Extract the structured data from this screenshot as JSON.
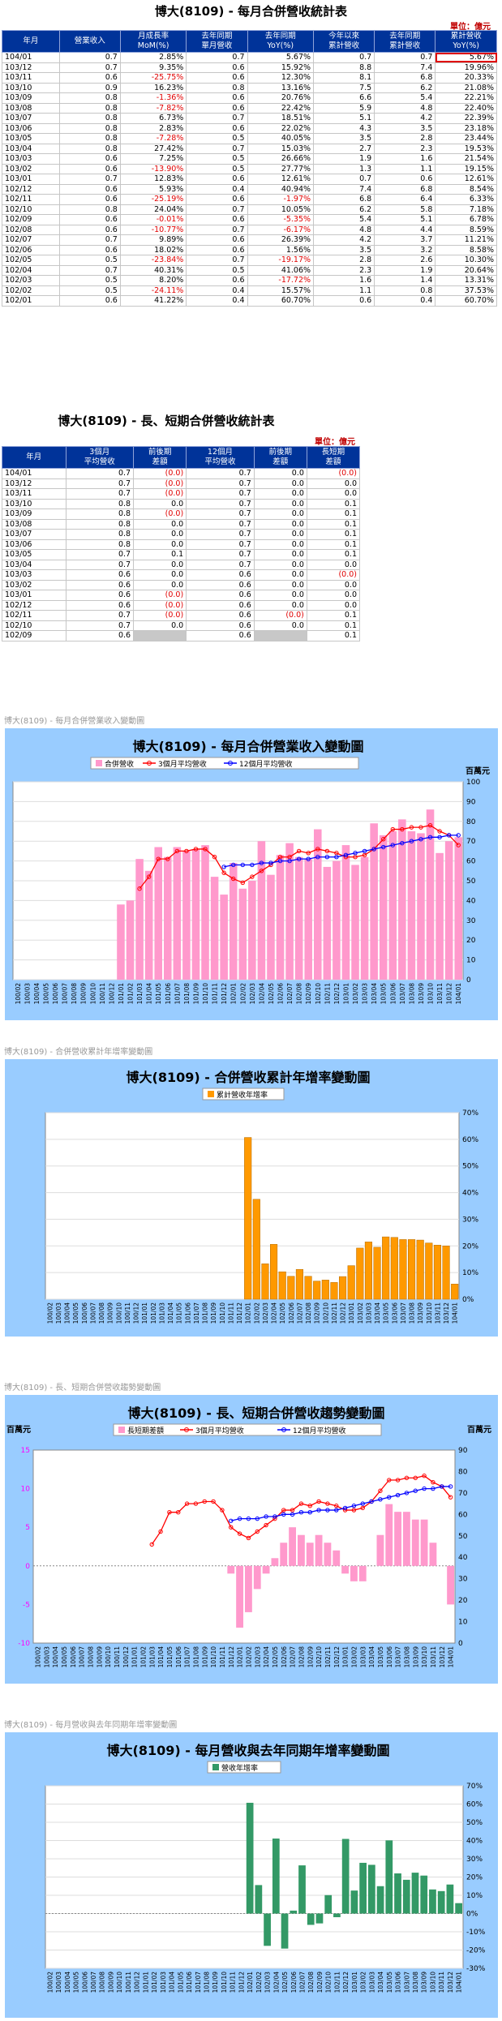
{
  "table1": {
    "title": "博大(8109)  - 每月合併營收統計表",
    "unit": "單位：億元",
    "headers": [
      "年月",
      "營業收入",
      "月成長率\nMoM(%)",
      "去年同期\n單月營收",
      "去年同期\nYoY(%)",
      "今年以來\n累計營收",
      "去年同期\n累計營收",
      "累計營收\nYoY(%)"
    ],
    "rows": [
      [
        "104/01",
        "0.7",
        "2.85%",
        "0.7",
        "5.67%",
        "0.7",
        "0.7",
        "5.67%"
      ],
      [
        "103/12",
        "0.7",
        "9.35%",
        "0.6",
        "15.92%",
        "8.8",
        "7.4",
        "19.96%"
      ],
      [
        "103/11",
        "0.6",
        "-25.75%",
        "0.6",
        "12.30%",
        "8.1",
        "6.8",
        "20.33%"
      ],
      [
        "103/10",
        "0.9",
        "16.23%",
        "0.8",
        "13.16%",
        "7.5",
        "6.2",
        "21.08%"
      ],
      [
        "103/09",
        "0.8",
        "-1.36%",
        "0.6",
        "20.76%",
        "6.6",
        "5.4",
        "22.21%"
      ],
      [
        "103/08",
        "0.8",
        "-7.82%",
        "0.6",
        "22.42%",
        "5.9",
        "4.8",
        "22.40%"
      ],
      [
        "103/07",
        "0.8",
        "6.73%",
        "0.7",
        "18.51%",
        "5.1",
        "4.2",
        "22.39%"
      ],
      [
        "103/06",
        "0.8",
        "2.83%",
        "0.6",
        "22.02%",
        "4.3",
        "3.5",
        "23.18%"
      ],
      [
        "103/05",
        "0.8",
        "-7.28%",
        "0.5",
        "40.05%",
        "3.5",
        "2.8",
        "23.44%"
      ],
      [
        "103/04",
        "0.8",
        "27.42%",
        "0.7",
        "15.03%",
        "2.7",
        "2.3",
        "19.53%"
      ],
      [
        "103/03",
        "0.6",
        "7.25%",
        "0.5",
        "26.66%",
        "1.9",
        "1.6",
        "21.54%"
      ],
      [
        "103/02",
        "0.6",
        "-13.90%",
        "0.5",
        "27.77%",
        "1.3",
        "1.1",
        "19.15%"
      ],
      [
        "103/01",
        "0.7",
        "12.83%",
        "0.6",
        "12.61%",
        "0.7",
        "0.6",
        "12.61%"
      ],
      [
        "102/12",
        "0.6",
        "5.93%",
        "0.4",
        "40.94%",
        "7.4",
        "6.8",
        "8.54%"
      ],
      [
        "102/11",
        "0.6",
        "-25.19%",
        "0.6",
        "-1.97%",
        "6.8",
        "6.4",
        "6.33%"
      ],
      [
        "102/10",
        "0.8",
        "24.04%",
        "0.7",
        "10.05%",
        "6.2",
        "5.8",
        "7.18%"
      ],
      [
        "102/09",
        "0.6",
        "-0.01%",
        "0.6",
        "-5.35%",
        "5.4",
        "5.1",
        "6.78%"
      ],
      [
        "102/08",
        "0.6",
        "-10.77%",
        "0.7",
        "-6.17%",
        "4.8",
        "4.4",
        "8.59%"
      ],
      [
        "102/07",
        "0.7",
        "9.89%",
        "0.6",
        "26.39%",
        "4.2",
        "3.7",
        "11.21%"
      ],
      [
        "102/06",
        "0.6",
        "18.02%",
        "0.6",
        "1.56%",
        "3.5",
        "3.2",
        "8.58%"
      ],
      [
        "102/05",
        "0.5",
        "-23.84%",
        "0.7",
        "-19.17%",
        "2.8",
        "2.6",
        "10.30%"
      ],
      [
        "102/04",
        "0.7",
        "40.31%",
        "0.5",
        "41.06%",
        "2.3",
        "1.9",
        "20.64%"
      ],
      [
        "102/03",
        "0.5",
        "8.20%",
        "0.6",
        "-17.72%",
        "1.6",
        "1.4",
        "13.31%"
      ],
      [
        "102/02",
        "0.5",
        "-24.11%",
        "0.4",
        "15.57%",
        "1.1",
        "0.8",
        "37.53%"
      ],
      [
        "102/01",
        "0.6",
        "41.22%",
        "0.4",
        "60.70%",
        "0.6",
        "0.4",
        "60.70%"
      ]
    ]
  },
  "table2": {
    "title": "博大(8109)  - 長、短期合併營收統計表",
    "unit": "單位：億元",
    "headers": [
      "年月",
      "3個月\n平均營收",
      "前後期\n差額",
      "12個月\n平均營收",
      "前後期\n差額",
      "長短期\n差額"
    ],
    "rows": [
      [
        "104/01",
        "0.7",
        "(0.0)",
        "0.7",
        "0.0",
        "(0.0)"
      ],
      [
        "103/12",
        "0.7",
        "(0.0)",
        "0.7",
        "0.0",
        "0.0"
      ],
      [
        "103/11",
        "0.7",
        "(0.0)",
        "0.7",
        "0.0",
        "0.0"
      ],
      [
        "103/10",
        "0.8",
        "0.0",
        "0.7",
        "0.0",
        "0.1"
      ],
      [
        "103/09",
        "0.8",
        "(0.0)",
        "0.7",
        "0.0",
        "0.1"
      ],
      [
        "103/08",
        "0.8",
        "0.0",
        "0.7",
        "0.0",
        "0.1"
      ],
      [
        "103/07",
        "0.8",
        "0.0",
        "0.7",
        "0.0",
        "0.1"
      ],
      [
        "103/06",
        "0.8",
        "0.0",
        "0.7",
        "0.0",
        "0.1"
      ],
      [
        "103/05",
        "0.7",
        "0.1",
        "0.7",
        "0.0",
        "0.1"
      ],
      [
        "103/04",
        "0.7",
        "0.0",
        "0.7",
        "0.0",
        "0.0"
      ],
      [
        "103/03",
        "0.6",
        "0.0",
        "0.6",
        "0.0",
        "(0.0)"
      ],
      [
        "103/02",
        "0.6",
        "0.0",
        "0.6",
        "0.0",
        "0.0"
      ],
      [
        "103/01",
        "0.6",
        "(0.0)",
        "0.6",
        "0.0",
        "0.0"
      ],
      [
        "102/12",
        "0.6",
        "(0.0)",
        "0.6",
        "0.0",
        "0.0"
      ],
      [
        "102/11",
        "0.7",
        "(0.0)",
        "0.6",
        "(0.0)",
        "0.1"
      ],
      [
        "102/10",
        "0.7",
        "0.0",
        "0.6",
        "0.0",
        "0.1"
      ],
      [
        "102/09",
        "0.6",
        "",
        "0.6",
        "",
        "0.1"
      ]
    ]
  },
  "months": [
    "100/02",
    "100/03",
    "100/04",
    "100/05",
    "100/06",
    "100/07",
    "100/08",
    "100/09",
    "100/10",
    "100/11",
    "100/12",
    "101/01",
    "101/02",
    "101/03",
    "101/04",
    "101/05",
    "101/06",
    "101/07",
    "101/08",
    "101/09",
    "101/10",
    "101/11",
    "101/12",
    "102/01",
    "102/02",
    "102/03",
    "102/04",
    "102/05",
    "102/06",
    "102/07",
    "102/08",
    "102/09",
    "102/10",
    "102/11",
    "102/12",
    "103/01",
    "103/02",
    "103/03",
    "103/04",
    "103/05",
    "103/06",
    "103/07",
    "103/08",
    "103/09",
    "103/10",
    "103/11",
    "103/12",
    "104/01"
  ],
  "chart_data": [
    {
      "type": "bar",
      "caption": "博大(8109)  - 每月合併營業收入變動圖",
      "title": "博大(8109)  - 每月合併營業收入變動圖",
      "unit": "百萬元",
      "ylim": [
        0,
        100
      ],
      "yticks": [
        0,
        10,
        20,
        30,
        40,
        50,
        60,
        70,
        80,
        90,
        100
      ],
      "series": [
        {
          "name": "合併營收",
          "kind": "bar",
          "color": "#ff99cc",
          "values": [
            null,
            null,
            null,
            null,
            null,
            null,
            null,
            null,
            null,
            null,
            null,
            38,
            40,
            61,
            55,
            67,
            62,
            67,
            65,
            66,
            68,
            52,
            43,
            59,
            46,
            50,
            70,
            53,
            63,
            69,
            62,
            61,
            76,
            57,
            60,
            68,
            58,
            62,
            79,
            73,
            75,
            81,
            75,
            74,
            86,
            64,
            70,
            72
          ]
        },
        {
          "name": "3個月平均營收",
          "kind": "line",
          "color": "#ff0000",
          "values": [
            null,
            null,
            null,
            null,
            null,
            null,
            null,
            null,
            null,
            null,
            null,
            null,
            null,
            46,
            52,
            61,
            61,
            65,
            65,
            66,
            66,
            62,
            54,
            51,
            49,
            52,
            55,
            58,
            62,
            62,
            65,
            64,
            66,
            65,
            64,
            62,
            62,
            63,
            66,
            71,
            76,
            76,
            77,
            77,
            78,
            75,
            73,
            68
          ]
        },
        {
          "name": "12個月平均營收",
          "kind": "line",
          "color": "#0000ff",
          "values": [
            null,
            null,
            null,
            null,
            null,
            null,
            null,
            null,
            null,
            null,
            null,
            null,
            null,
            null,
            null,
            null,
            null,
            null,
            null,
            null,
            null,
            null,
            57,
            58,
            58,
            58,
            59,
            59,
            60,
            60,
            61,
            61,
            62,
            62,
            62,
            63,
            64,
            65,
            66,
            67,
            68,
            69,
            70,
            71,
            72,
            72,
            73,
            73
          ]
        }
      ]
    },
    {
      "type": "bar",
      "caption": "博大(8109)  - 合併營收累計年增率變動圖",
      "title": "博大(8109)  - 合併營收累計年增率變動圖",
      "ylim": [
        0,
        70
      ],
      "yticks_right": [
        "0%",
        "10%",
        "20%",
        "30%",
        "40%",
        "50%",
        "60%",
        "70%"
      ],
      "series": [
        {
          "name": "累計營收年增率",
          "kind": "bar",
          "color": "#ff9900",
          "values": [
            null,
            null,
            null,
            null,
            null,
            null,
            null,
            null,
            null,
            null,
            null,
            null,
            null,
            null,
            null,
            null,
            null,
            null,
            null,
            null,
            null,
            null,
            null,
            60.7,
            37.5,
            13.3,
            20.6,
            10.3,
            8.6,
            11.2,
            8.6,
            6.8,
            7.2,
            6.3,
            8.5,
            12.6,
            19.2,
            21.5,
            19.5,
            23.4,
            23.2,
            22.4,
            22.4,
            22.2,
            21.1,
            20.3,
            20.0,
            5.7
          ]
        }
      ]
    },
    {
      "type": "bar",
      "caption": "博大(8109)  - 長、短期合併營收趨勢變動圖",
      "title": "博大(8109)  - 長、短期合併營收趨勢變動圖",
      "unit": "百萬元",
      "ylim_left": [
        -10,
        15
      ],
      "yticks_left": [
        -10,
        -5,
        0,
        5,
        10,
        15
      ],
      "ylim_right": [
        0,
        90
      ],
      "yticks_right": [
        0,
        10,
        20,
        30,
        40,
        50,
        60,
        70,
        80,
        90
      ],
      "series": [
        {
          "name": "長短期差額",
          "kind": "bar",
          "color": "#ff99cc",
          "values": [
            null,
            null,
            null,
            null,
            null,
            null,
            null,
            null,
            null,
            null,
            null,
            null,
            null,
            null,
            null,
            null,
            null,
            null,
            null,
            null,
            null,
            null,
            -1,
            -8,
            -6,
            -3,
            -1,
            1,
            3,
            5,
            4,
            3,
            4,
            3,
            2,
            -1,
            -2,
            -2,
            0,
            4,
            8,
            7,
            7,
            6,
            6,
            3,
            0,
            -5
          ]
        },
        {
          "name": "3個月平均營收",
          "kind": "line",
          "color": "#ff0000",
          "values": [
            null,
            null,
            null,
            null,
            null,
            null,
            null,
            null,
            null,
            null,
            null,
            null,
            null,
            46,
            52,
            61,
            61,
            65,
            65,
            66,
            66,
            62,
            54,
            51,
            49,
            52,
            55,
            58,
            62,
            62,
            65,
            64,
            66,
            65,
            64,
            62,
            62,
            63,
            66,
            71,
            76,
            76,
            77,
            77,
            78,
            75,
            73,
            68
          ]
        },
        {
          "name": "12個月平均營收",
          "kind": "line",
          "color": "#0000ff",
          "values": [
            null,
            null,
            null,
            null,
            null,
            null,
            null,
            null,
            null,
            null,
            null,
            null,
            null,
            null,
            null,
            null,
            null,
            null,
            null,
            null,
            null,
            null,
            57,
            58,
            58,
            58,
            59,
            59,
            60,
            60,
            61,
            61,
            62,
            62,
            62,
            63,
            64,
            65,
            66,
            67,
            68,
            69,
            70,
            71,
            72,
            72,
            73,
            73
          ]
        }
      ]
    },
    {
      "type": "bar",
      "caption": "博大(8109)  - 每月營收與去年同期年增率變動圖",
      "title": "博大(8109)  - 每月營收與去年同期年增率變動圖",
      "ylim": [
        -30,
        70
      ],
      "yticks_right": [
        "-30%",
        "-20%",
        "-10%",
        "0%",
        "10%",
        "20%",
        "30%",
        "40%",
        "50%",
        "60%",
        "70%"
      ],
      "series": [
        {
          "name": "營收年增率",
          "kind": "bar",
          "color": "#339966",
          "values": [
            null,
            null,
            null,
            null,
            null,
            null,
            null,
            null,
            null,
            null,
            null,
            null,
            null,
            null,
            null,
            null,
            null,
            null,
            null,
            null,
            null,
            null,
            null,
            60.7,
            15.6,
            -17.7,
            41.1,
            -19.2,
            1.6,
            26.4,
            -6.2,
            -5.4,
            10.1,
            -2.0,
            40.9,
            12.6,
            27.8,
            26.7,
            15.0,
            40.1,
            22.0,
            18.5,
            22.4,
            20.8,
            13.2,
            12.3,
            15.9,
            5.7
          ]
        }
      ]
    }
  ]
}
